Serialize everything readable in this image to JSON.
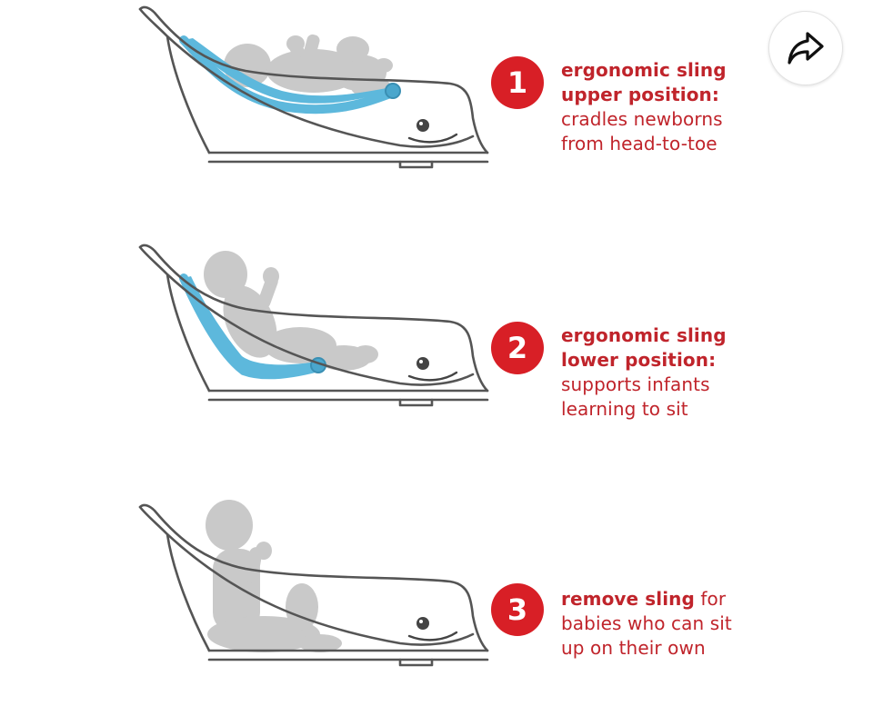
{
  "share_button": {
    "icon": "share-arrow-icon"
  },
  "colors": {
    "accent": "#d81f26",
    "text": "#c0242b",
    "sling": "#5db8dc",
    "baby": "#c9c9c9",
    "outline": "#555555"
  },
  "steps": [
    {
      "number": "1",
      "title_line1": "ergonomic sling",
      "title_line2": "upper position:",
      "desc_line1": "cradles newborns",
      "desc_line2": "from head-to-toe"
    },
    {
      "number": "2",
      "title_line1": "ergonomic sling",
      "title_line2": "lower position:",
      "desc_line1": "supports infants",
      "desc_line2": "learning to sit"
    },
    {
      "number": "3",
      "title_inline": "remove sling",
      "title_suffix": " for",
      "desc_line1": "babies who can sit",
      "desc_line2": "up on their own"
    }
  ]
}
